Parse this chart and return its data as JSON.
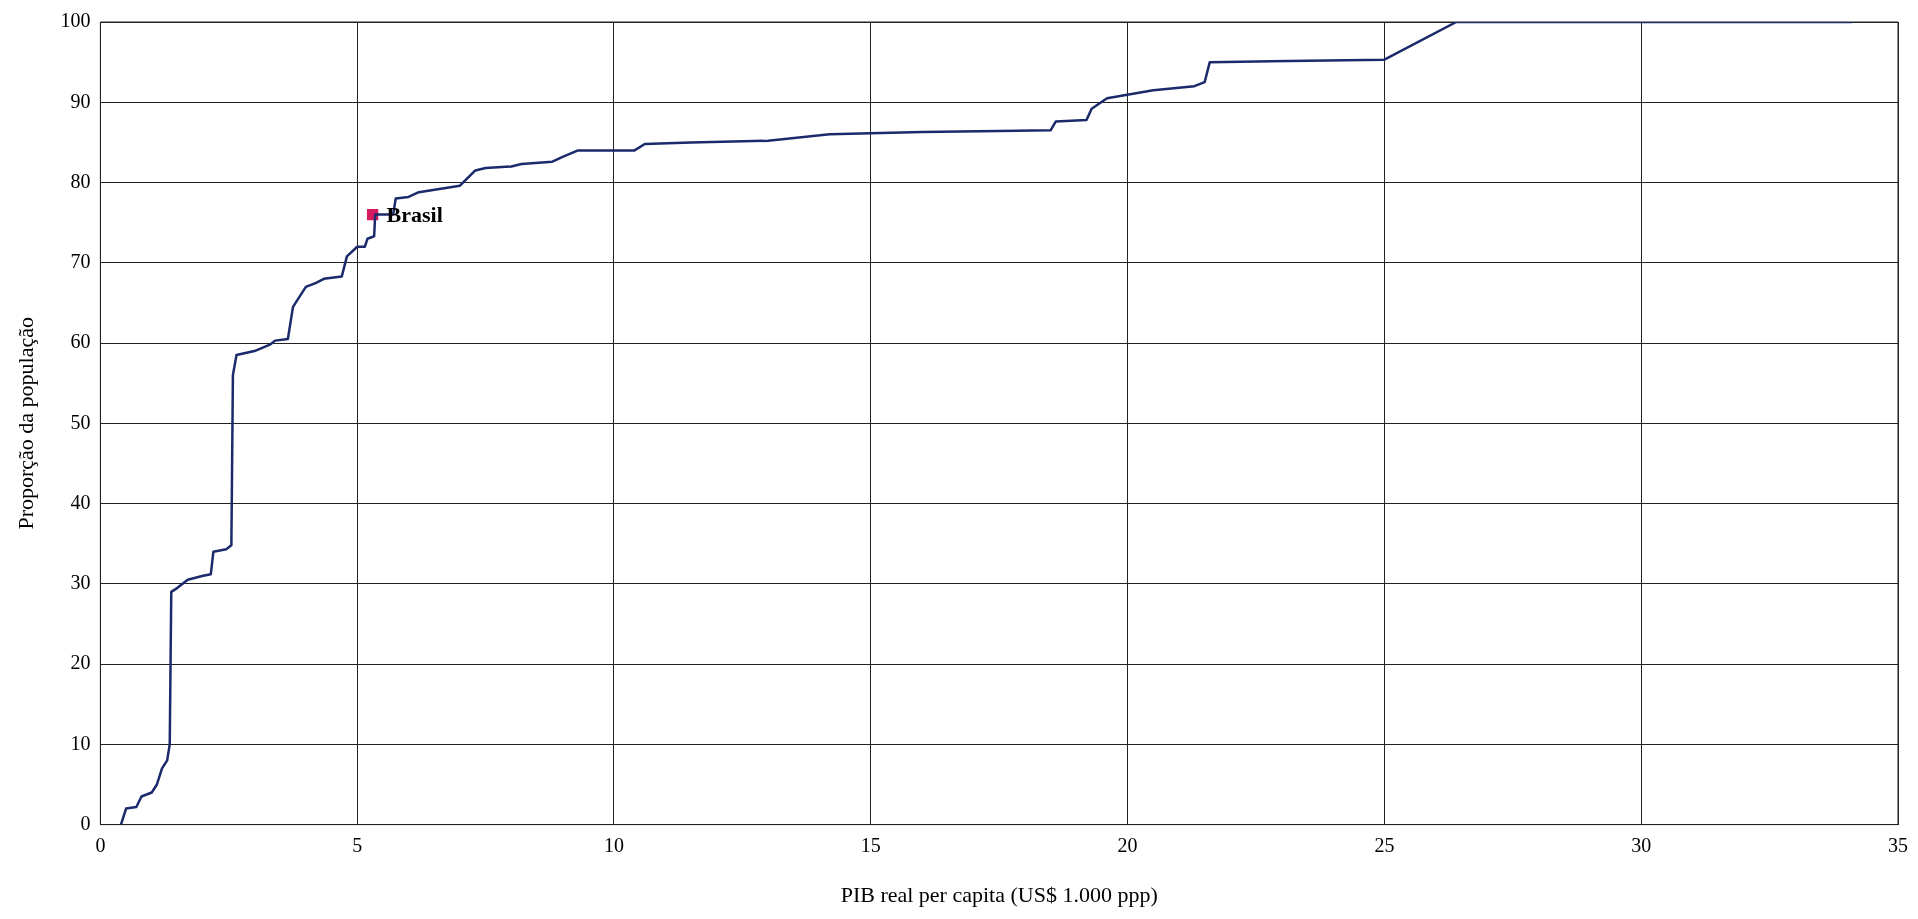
{
  "chart_data": {
    "type": "line",
    "xlabel": "PIB real per capita (US$ 1.000 ppp)",
    "ylabel": "Proporção da população",
    "xlim": [
      0,
      35
    ],
    "xticks": [
      0,
      5,
      10,
      15,
      20,
      25,
      30,
      35
    ],
    "ylim": [
      0,
      100
    ],
    "yticks": [
      0,
      10,
      20,
      30,
      40,
      50,
      60,
      70,
      80,
      90,
      100
    ],
    "grid": true,
    "legend": false,
    "marker": "none",
    "line_style": "solid",
    "series": [
      {
        "color": "#1b2a6b",
        "x": [
          0.4,
          0.5,
          0.7,
          0.8,
          1.0,
          1.1,
          1.2,
          1.3,
          1.35,
          1.38,
          1.5,
          1.7,
          2.0,
          2.15,
          2.2,
          2.45,
          2.55,
          2.58,
          2.65,
          3.0,
          3.3,
          3.4,
          3.65,
          3.75,
          3.9,
          4.0,
          4.2,
          4.35,
          4.7,
          4.8,
          5.0,
          5.15,
          5.2,
          5.33,
          5.35,
          5.7,
          5.75,
          6.0,
          6.2,
          7.0,
          7.3,
          7.5,
          8.0,
          8.2,
          8.8,
          9.0,
          9.3,
          10.4,
          10.6,
          11.5,
          13,
          14.2,
          16,
          18.5,
          18.6,
          19.2,
          19.3,
          19.6,
          20.5,
          21.3,
          21.5,
          21.6,
          25,
          26.4,
          34.1
        ],
        "values": [
          0,
          2,
          2.2,
          3.5,
          4,
          5,
          7,
          8,
          10,
          29,
          29.5,
          30.5,
          31,
          31.2,
          34,
          34.3,
          34.8,
          56,
          58.5,
          59,
          59.8,
          60.3,
          60.5,
          64.5,
          66,
          67,
          67.5,
          68,
          68.3,
          70.8,
          72,
          72,
          73,
          73.3,
          76,
          76,
          78,
          78.2,
          78.8,
          79.6,
          81.5,
          81.8,
          82,
          82.3,
          82.6,
          83.2,
          84,
          84,
          84.8,
          85,
          85.2,
          86,
          86.3,
          86.5,
          87.6,
          87.8,
          89.2,
          90.5,
          91.5,
          92,
          92.5,
          95,
          95.3,
          100,
          100
        ]
      },
      {
        "type": "scatter",
        "name": "Brasil",
        "color": "#d81b60",
        "marker": "square",
        "x": [
          5.3
        ],
        "values": [
          76
        ]
      }
    ]
  }
}
